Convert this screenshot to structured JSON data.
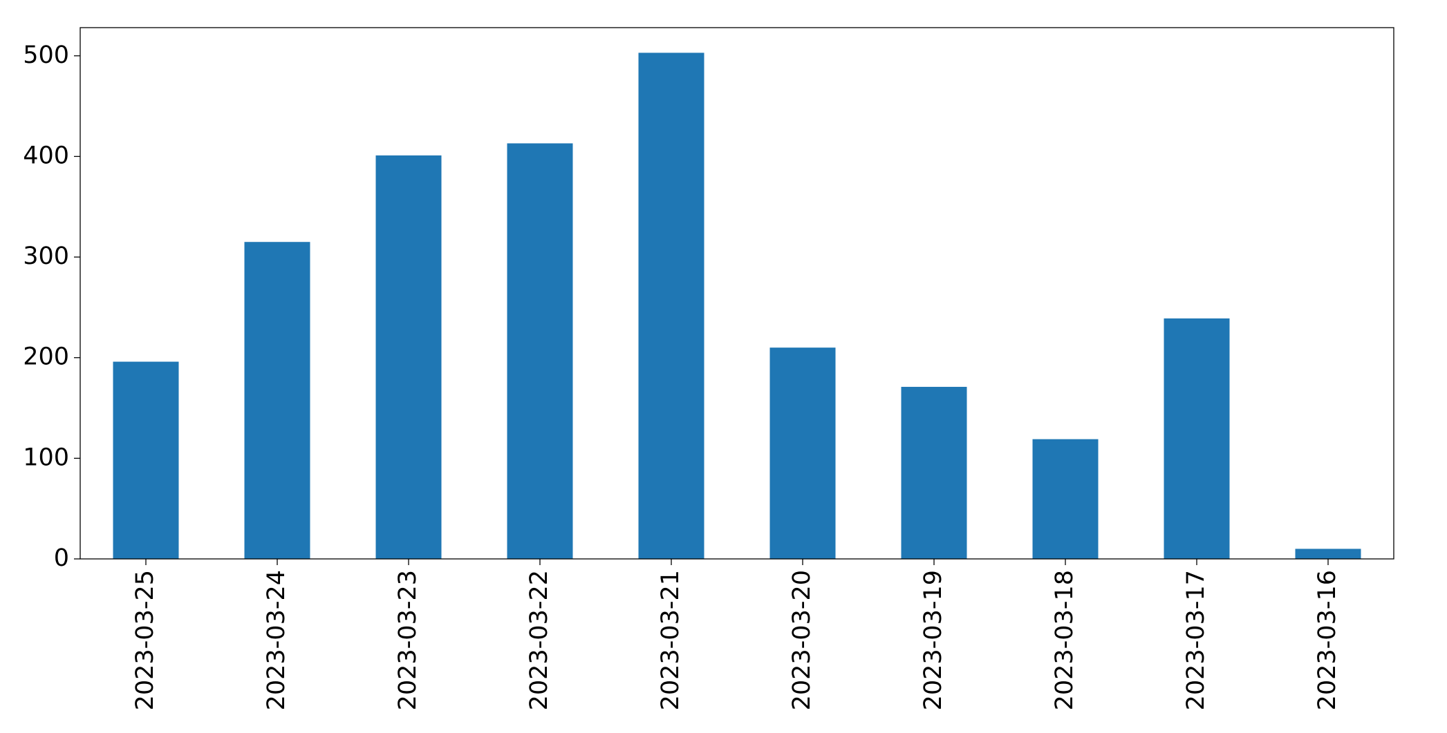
{
  "chart_data": {
    "type": "bar",
    "categories": [
      "2023-03-25",
      "2023-03-24",
      "2023-03-23",
      "2023-03-22",
      "2023-03-21",
      "2023-03-20",
      "2023-03-19",
      "2023-03-18",
      "2023-03-17",
      "2023-03-16"
    ],
    "values": [
      196,
      315,
      401,
      413,
      503,
      210,
      171,
      119,
      239,
      10
    ],
    "color": "#1f77b4",
    "ylim": [
      0,
      528
    ],
    "yticks": [
      0,
      100,
      200,
      300,
      400,
      500
    ],
    "grid": false
  }
}
